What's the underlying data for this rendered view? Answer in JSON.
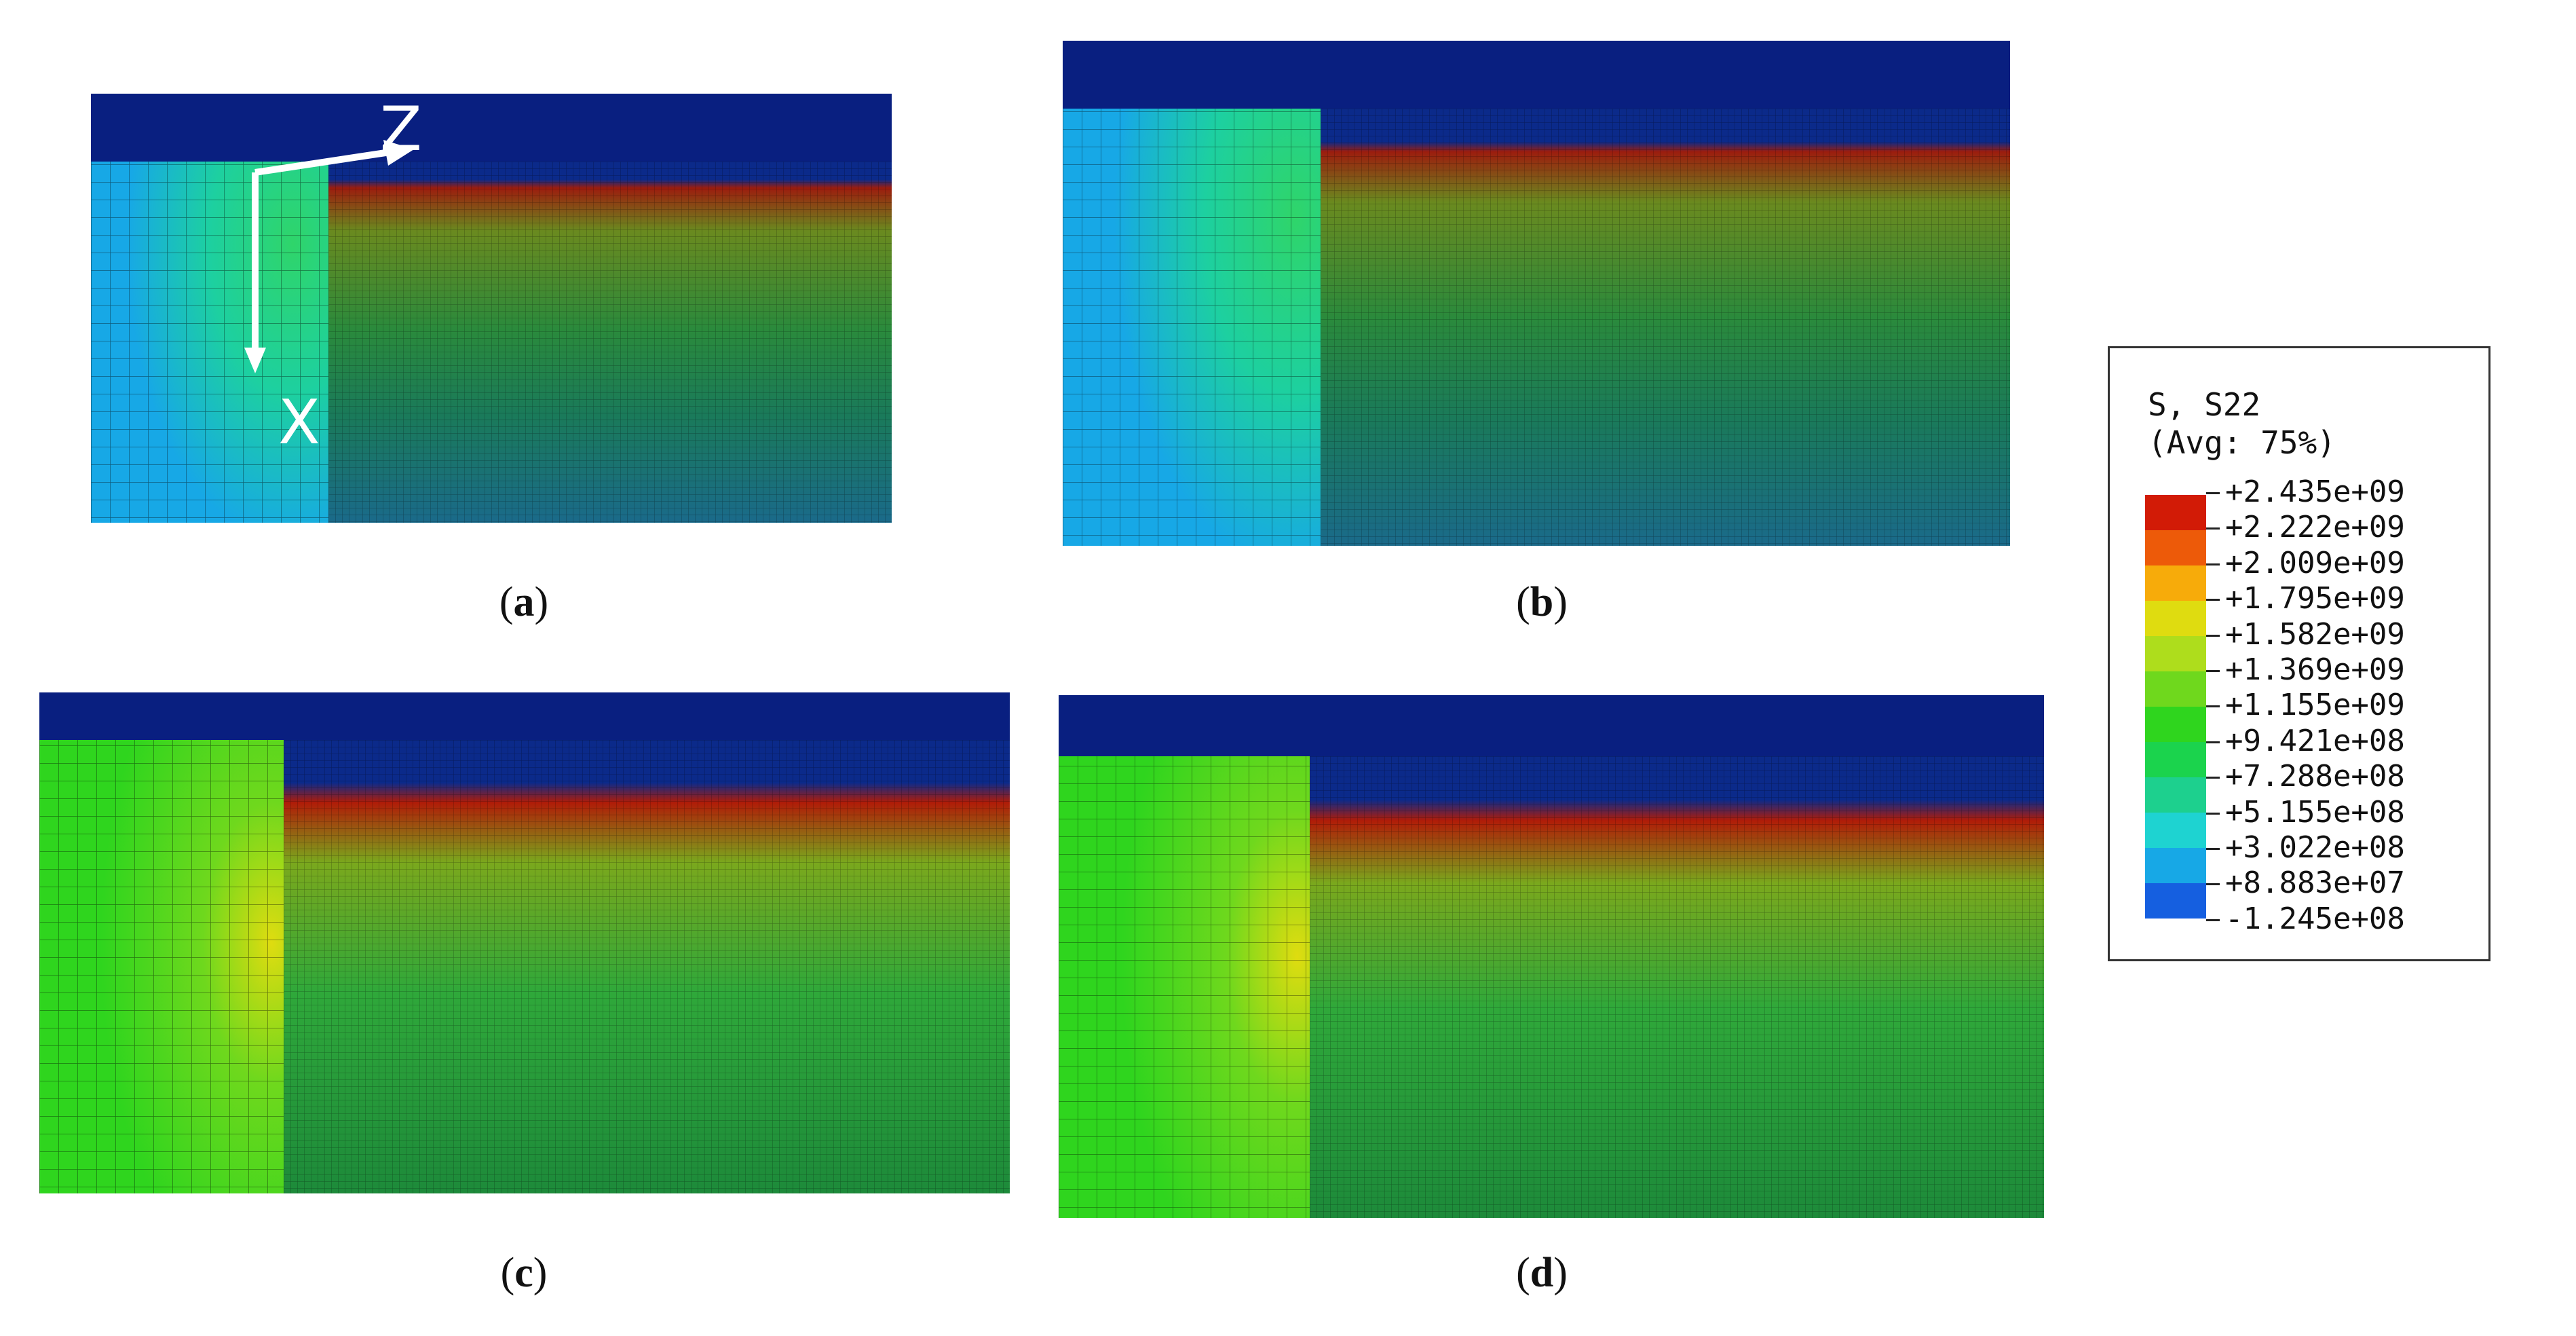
{
  "figure": {
    "panels": [
      {
        "id": "a",
        "caption_letter": "a"
      },
      {
        "id": "b",
        "caption_letter": "b"
      },
      {
        "id": "c",
        "caption_letter": "c"
      },
      {
        "id": "d",
        "caption_letter": "d"
      }
    ],
    "axes_labels": {
      "z": "Z",
      "x": "X"
    },
    "legend": {
      "title_line1": "S, S22",
      "title_line2": "(Avg: 75%)",
      "values": [
        "+2.435e+09",
        "+2.222e+09",
        "+2.009e+09",
        "+1.795e+09",
        "+1.582e+09",
        "+1.369e+09",
        "+1.155e+09",
        "+9.421e+08",
        "+7.288e+08",
        "+5.155e+08",
        "+3.022e+08",
        "+8.883e+07",
        "-1.245e+08"
      ],
      "colors": [
        "#d21b06",
        "#ed5a09",
        "#f7ab0a",
        "#dfdc10",
        "#aedd1c",
        "#6fd81d",
        "#2fd51e",
        "#1bd34d",
        "#1dd08e",
        "#1ed3d1",
        "#17a8e6",
        "#155fe0",
        "#0c14d1"
      ]
    }
  }
}
